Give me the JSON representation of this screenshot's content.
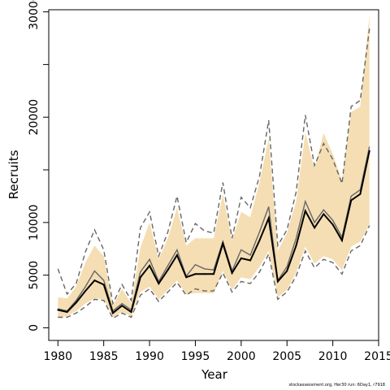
{
  "chart_data": {
    "type": "line",
    "xlabel": "Year",
    "ylabel": "Recruits",
    "xlim": [
      1979,
      2015
    ],
    "ylim": [
      -1200,
      30200
    ],
    "x_ticks": [
      1980,
      1985,
      1990,
      1995,
      2000,
      2005,
      2010,
      2015
    ],
    "y_ticks": [
      0,
      5000,
      10000,
      15000,
      20000,
      25000,
      30000
    ],
    "y_tick_labels": [
      "0",
      "5000",
      "10000",
      "",
      "20000",
      "",
      "30000"
    ],
    "grid": false,
    "x": [
      1980,
      1981,
      1982,
      1983,
      1984,
      1985,
      1986,
      1987,
      1988,
      1989,
      1990,
      1991,
      1992,
      1993,
      1994,
      1995,
      1996,
      1997,
      1998,
      1999,
      2000,
      2001,
      2002,
      2003,
      2004,
      2005,
      2006,
      2007,
      2008,
      2009,
      2010,
      2011,
      2012,
      2013,
      2014
    ],
    "series": [
      {
        "role": "median",
        "color": "#000000",
        "values": [
          1700,
          1500,
          2400,
          3500,
          4500,
          4100,
          1400,
          2100,
          1500,
          4800,
          5900,
          4200,
          5500,
          6900,
          4800,
          5100,
          5100,
          5100,
          8000,
          5200,
          6600,
          6400,
          8300,
          10400,
          4400,
          5400,
          7800,
          11100,
          9500,
          10800,
          9800,
          8300,
          12100,
          12700,
          16800
        ]
      },
      {
        "role": "mean",
        "color": "#666666",
        "values": [
          1800,
          1600,
          2600,
          3900,
          5400,
          4500,
          1600,
          2300,
          1700,
          5300,
          6500,
          4400,
          5900,
          7400,
          4900,
          6000,
          5600,
          5500,
          8200,
          5400,
          7400,
          6900,
          9100,
          11500,
          4500,
          5800,
          8500,
          12000,
          10000,
          11200,
          10200,
          8600,
          12500,
          13100,
          17200
        ]
      },
      {
        "role": "interval-upper-dashed",
        "color": "#666666",
        "values": [
          5600,
          3200,
          4200,
          7200,
          9300,
          7400,
          2300,
          4100,
          2600,
          9500,
          11000,
          6800,
          9100,
          12500,
          8100,
          9900,
          9200,
          9000,
          13800,
          8500,
          12400,
          11400,
          14400,
          19700,
          7800,
          9300,
          12900,
          20200,
          15400,
          17500,
          16000,
          13700,
          21000,
          21600,
          28400
        ]
      },
      {
        "role": "interval-lower-dashed",
        "color": "#666666",
        "values": [
          1000,
          1000,
          1400,
          2000,
          2700,
          2600,
          900,
          1400,
          1000,
          3100,
          3700,
          2500,
          3400,
          4300,
          3100,
          3700,
          3500,
          3500,
          5200,
          3400,
          4400,
          4200,
          5300,
          7000,
          2700,
          3400,
          4900,
          7300,
          5700,
          6500,
          6200,
          5100,
          7300,
          7800,
          9700
        ]
      },
      {
        "role": "interval-upper-shaded",
        "color": "#f5deb3",
        "values": [
          2900,
          2800,
          3900,
          6200,
          7800,
          6800,
          2100,
          3700,
          2300,
          7600,
          10000,
          6500,
          8500,
          11400,
          7800,
          8500,
          8500,
          8500,
          12700,
          8300,
          11000,
          10500,
          13800,
          18000,
          7300,
          9000,
          12000,
          18500,
          15100,
          18500,
          16500,
          14000,
          20500,
          21000,
          29700
        ]
      },
      {
        "role": "interval-lower-shaded",
        "color": "#f5deb3",
        "values": [
          1000,
          1100,
          1600,
          2300,
          2800,
          2700,
          1000,
          1500,
          1100,
          3400,
          3900,
          2700,
          3600,
          4500,
          3200,
          3300,
          3300,
          3300,
          5400,
          3600,
          4800,
          4600,
          5800,
          7300,
          2900,
          3600,
          5200,
          7700,
          6100,
          6800,
          6500,
          5500,
          7700,
          8200,
          9800
        ]
      }
    ]
  },
  "footer": "stockassessment.org, Her30 run: 6Day1, r7918"
}
